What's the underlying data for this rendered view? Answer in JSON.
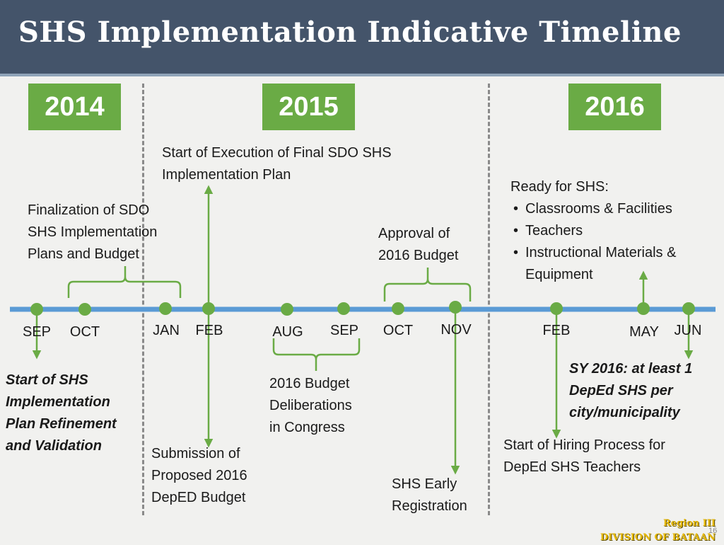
{
  "title": "SHS Implementation Indicative Timeline",
  "years": [
    "2014",
    "2015",
    "2016"
  ],
  "months": [
    "SEP",
    "OCT",
    "JAN",
    "FEB",
    "AUG",
    "SEP",
    "OCT",
    "NOV",
    "FEB",
    "MAY",
    "JUN"
  ],
  "events": {
    "finalization": "Finalization of SDO\nSHS Implementation\nPlans and Budget",
    "start_execution": "Start of Execution of Final SDO SHS\nImplementation Plan",
    "approval": "Approval of\n2016 Budget",
    "start_refinement": "Start of SHS\nImplementation\nPlan Refinement\nand Validation",
    "submission": "Submission of\nProposed 2016\nDepED Budget",
    "deliberations": "2016 Budget\nDeliberations\nin Congress",
    "early_registration": "SHS Early\nRegistration",
    "sy2016": "SY 2016: at least 1\nDepEd SHS per\ncity/municipality",
    "hiring": "Start of Hiring Process for\nDepEd SHS Teachers"
  },
  "ready": {
    "heading": "Ready for SHS:",
    "items": [
      "Classrooms & Facilities",
      "Teachers",
      "Instructional Materials &\nEquipment"
    ]
  },
  "footer": {
    "region": "Region III",
    "division": "DIVISION OF BATAAN",
    "slide_number": "16"
  },
  "colors": {
    "header": "#44546a",
    "year_box": "#6aab45",
    "timeline": "#5b9bd5",
    "marker": "#6aab45"
  }
}
